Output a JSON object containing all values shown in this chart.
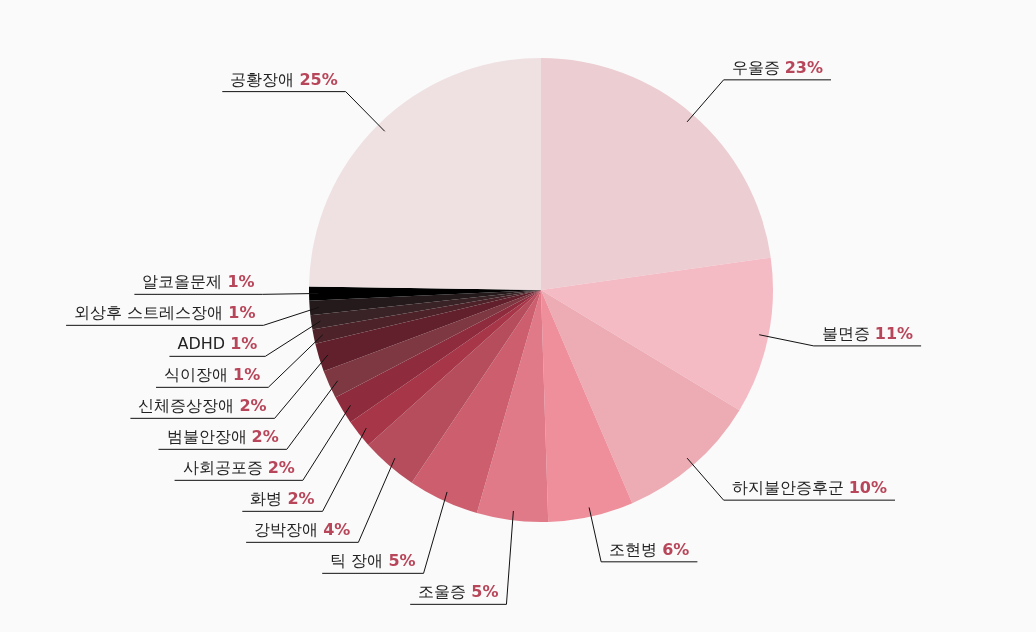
{
  "chart_data": {
    "type": "pie",
    "categories": [
      "우울증",
      "불면증",
      "하지불안증후군",
      "조현병",
      "조울증",
      "틱 장애",
      "강박장애",
      "화병",
      "사회공포증",
      "범불안장애",
      "신체증상장애",
      "식이장애",
      "ADHD",
      "외상후 스트레스장애",
      "알코올문제",
      "공황장애"
    ],
    "values": [
      23,
      11,
      10,
      6,
      5,
      5,
      4,
      2,
      2,
      2,
      2,
      1,
      1,
      1,
      1,
      25
    ],
    "colors": [
      "#ebcdd2",
      "#f4bbc5",
      "#edabb4",
      "#ee8f9b",
      "#e07a88",
      "#cc5e6e",
      "#b64d5d",
      "#a63648",
      "#8e2b3c",
      "#7d3842",
      "#62202c",
      "#4d2329",
      "#3a2326",
      "#241a1c",
      "#000000",
      "#efe0e2"
    ],
    "value_labels": [
      "23%",
      "11%",
      "10%",
      "6%",
      "5%",
      "5%",
      "4%",
      "2%",
      "2%",
      "2%",
      "2%",
      "1%",
      "1%",
      "1%",
      "1%",
      "25%"
    ]
  }
}
